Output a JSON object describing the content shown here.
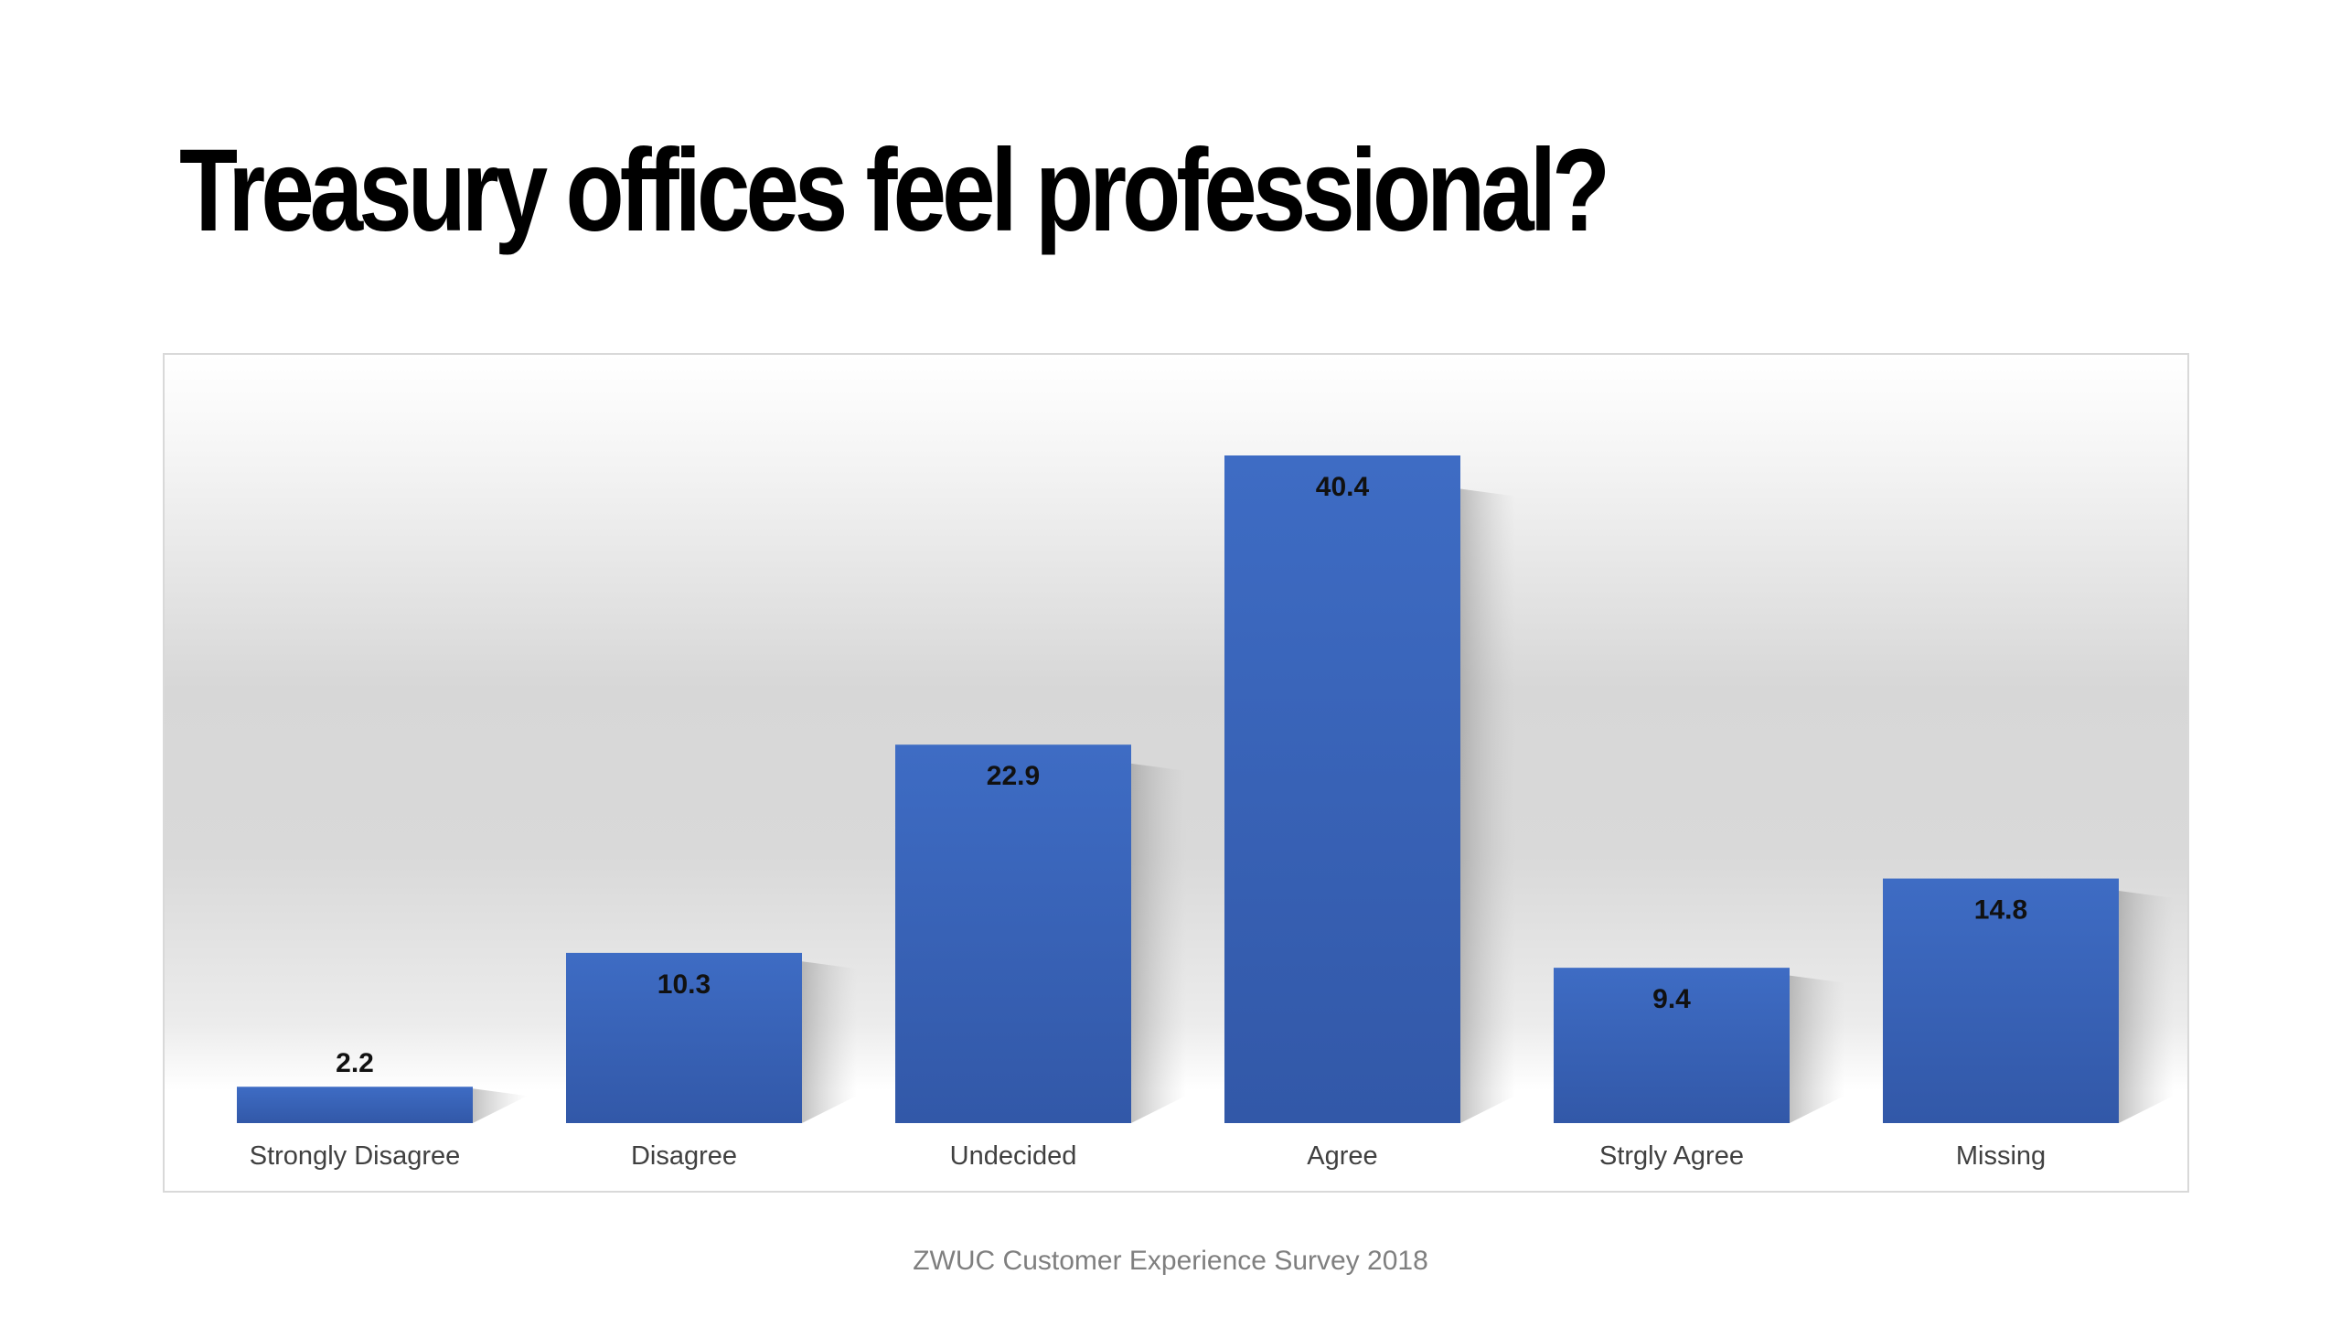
{
  "slide": {
    "title": "Treasury offices feel professional?",
    "source": "ZWUC Customer Experience Survey 2018"
  },
  "chart_data": {
    "type": "bar",
    "categories": [
      "Strongly Disagree",
      "Disagree",
      "Undecided",
      "Agree",
      "Strgly Agree",
      "Missing"
    ],
    "values": [
      2.2,
      10.3,
      22.9,
      40.4,
      9.4,
      14.8
    ],
    "value_labels": [
      "2.2",
      "10.3",
      "22.9",
      "40.4",
      "9.4",
      "14.8"
    ],
    "ylim": [
      0,
      40.4
    ],
    "grid": false,
    "legend": "none",
    "bar_color": "#3e6cc4",
    "bar_color_dark": "#3258a8",
    "shadow_color": "#9a9a9a"
  }
}
